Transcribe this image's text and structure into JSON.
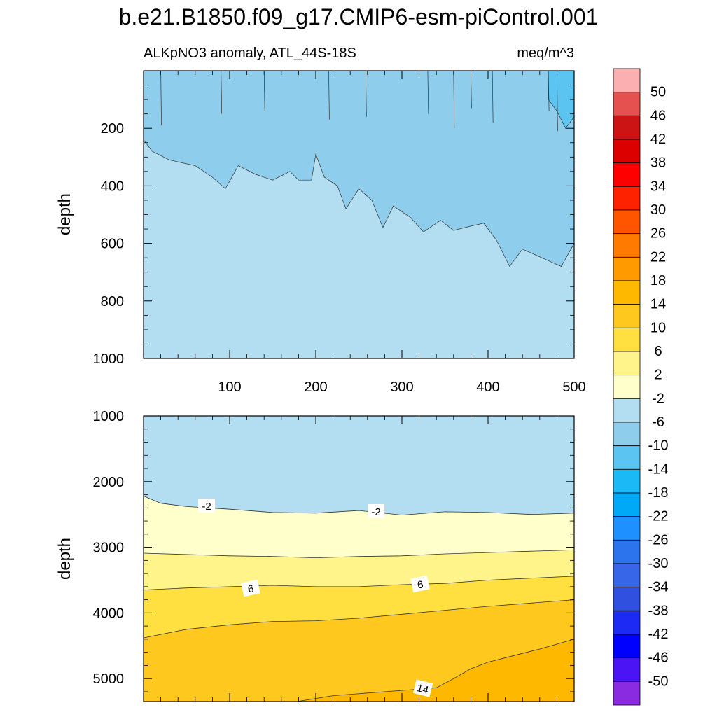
{
  "title": "b.e21.B1850.f09_g17.CMIP6-esm-piControl.001",
  "chart_data": [
    {
      "type": "contour",
      "panel": "upper",
      "title": "ALKpNO3 anomaly, ATL_44S-18S",
      "units": "meq/m^3",
      "xlabel": "",
      "ylabel": "depth",
      "xlim": [
        0,
        500
      ],
      "ylim": [
        1000,
        0
      ],
      "x_ticks": [
        100,
        200,
        300,
        400,
        500
      ],
      "y_ticks": [
        200,
        400,
        600,
        800,
        1000
      ],
      "contour_labels": [],
      "regions": [
        {
          "range": "-6 to -2",
          "description": "background fill below boundary"
        },
        {
          "range": "-10 to -6",
          "boundary_x": [
            0,
            10,
            30,
            60,
            80,
            95,
            110,
            130,
            150,
            170,
            180,
            195,
            200,
            210,
            225,
            235,
            250,
            265,
            278,
            290,
            310,
            325,
            345,
            360,
            380,
            395,
            410,
            425,
            440,
            455,
            470,
            485,
            500
          ],
          "boundary_depth": [
            240,
            280,
            310,
            330,
            370,
            410,
            330,
            360,
            380,
            350,
            380,
            380,
            290,
            370,
            400,
            480,
            410,
            450,
            545,
            470,
            510,
            560,
            520,
            555,
            540,
            530,
            590,
            680,
            620,
            640,
            660,
            680,
            600
          ]
        },
        {
          "range": "-14 to -10",
          "boundary_x": [
            470,
            480,
            490,
            500
          ],
          "boundary_depth": [
            100,
            140,
            200,
            160
          ]
        }
      ]
    },
    {
      "type": "contour",
      "panel": "lower",
      "xlabel": "",
      "ylabel": "depth",
      "xlim": [
        0,
        500
      ],
      "ylim": [
        5350,
        1000
      ],
      "y_ticks": [
        1000,
        2000,
        3000,
        4000,
        5000
      ],
      "contour_labels": [
        "-2",
        "-2",
        "6",
        "6",
        "14"
      ],
      "levels": [
        {
          "value": -2,
          "x": [
            0,
            20,
            50,
            100,
            150,
            200,
            250,
            300,
            350,
            400,
            450,
            500
          ],
          "depth": [
            2220,
            2330,
            2380,
            2420,
            2470,
            2480,
            2440,
            2510,
            2460,
            2470,
            2500,
            2480
          ]
        },
        {
          "value": 2,
          "x": [
            0,
            50,
            100,
            150,
            200,
            250,
            300,
            350,
            400,
            450,
            500
          ],
          "depth": [
            3090,
            3110,
            3130,
            3140,
            3160,
            3140,
            3130,
            3100,
            3080,
            3060,
            3040
          ]
        },
        {
          "value": 6,
          "x": [
            0,
            50,
            100,
            150,
            200,
            250,
            300,
            350,
            400,
            450,
            500
          ],
          "depth": [
            3650,
            3620,
            3600,
            3580,
            3600,
            3600,
            3570,
            3550,
            3500,
            3470,
            3440
          ]
        },
        {
          "value": 10,
          "x": [
            0,
            50,
            100,
            150,
            200,
            250,
            300,
            350,
            400,
            450,
            500
          ],
          "depth": [
            4380,
            4250,
            4180,
            4130,
            4120,
            4080,
            4020,
            3960,
            3900,
            3850,
            3800
          ]
        },
        {
          "value": 14,
          "x": [
            178,
            220,
            260,
            300,
            340,
            360,
            380,
            400,
            430,
            460,
            500
          ],
          "depth": [
            5350,
            5260,
            5220,
            5180,
            5140,
            5000,
            4850,
            4750,
            4650,
            4550,
            4400
          ]
        }
      ]
    }
  ],
  "colorbar": {
    "labels": [
      "50",
      "46",
      "42",
      "38",
      "34",
      "30",
      "26",
      "22",
      "18",
      "14",
      "10",
      "6",
      "2",
      "-2",
      "-6",
      "-10",
      "-14",
      "-18",
      "-22",
      "-26",
      "-30",
      "-34",
      "-38",
      "-42",
      "-46",
      "-50"
    ],
    "colors": [
      "#FBAFB1",
      "#E4514F",
      "#CC1414",
      "#DD0000",
      "#FF0000",
      "#FF2200",
      "#FF5500",
      "#FF7A00",
      "#FF9A00",
      "#FFB800",
      "#FFC81E",
      "#FFE040",
      "#FFF48A",
      "#FFFFCC",
      "#B3DEF2",
      "#8FCDEC",
      "#5BC4F1",
      "#1CB9F7",
      "#00A8F8",
      "#1E90FF",
      "#2C74EE",
      "#3866E8",
      "#3050DF",
      "#1D2AF3",
      "#0000FF",
      "#4A14F5",
      "#8A2BE2"
    ]
  }
}
